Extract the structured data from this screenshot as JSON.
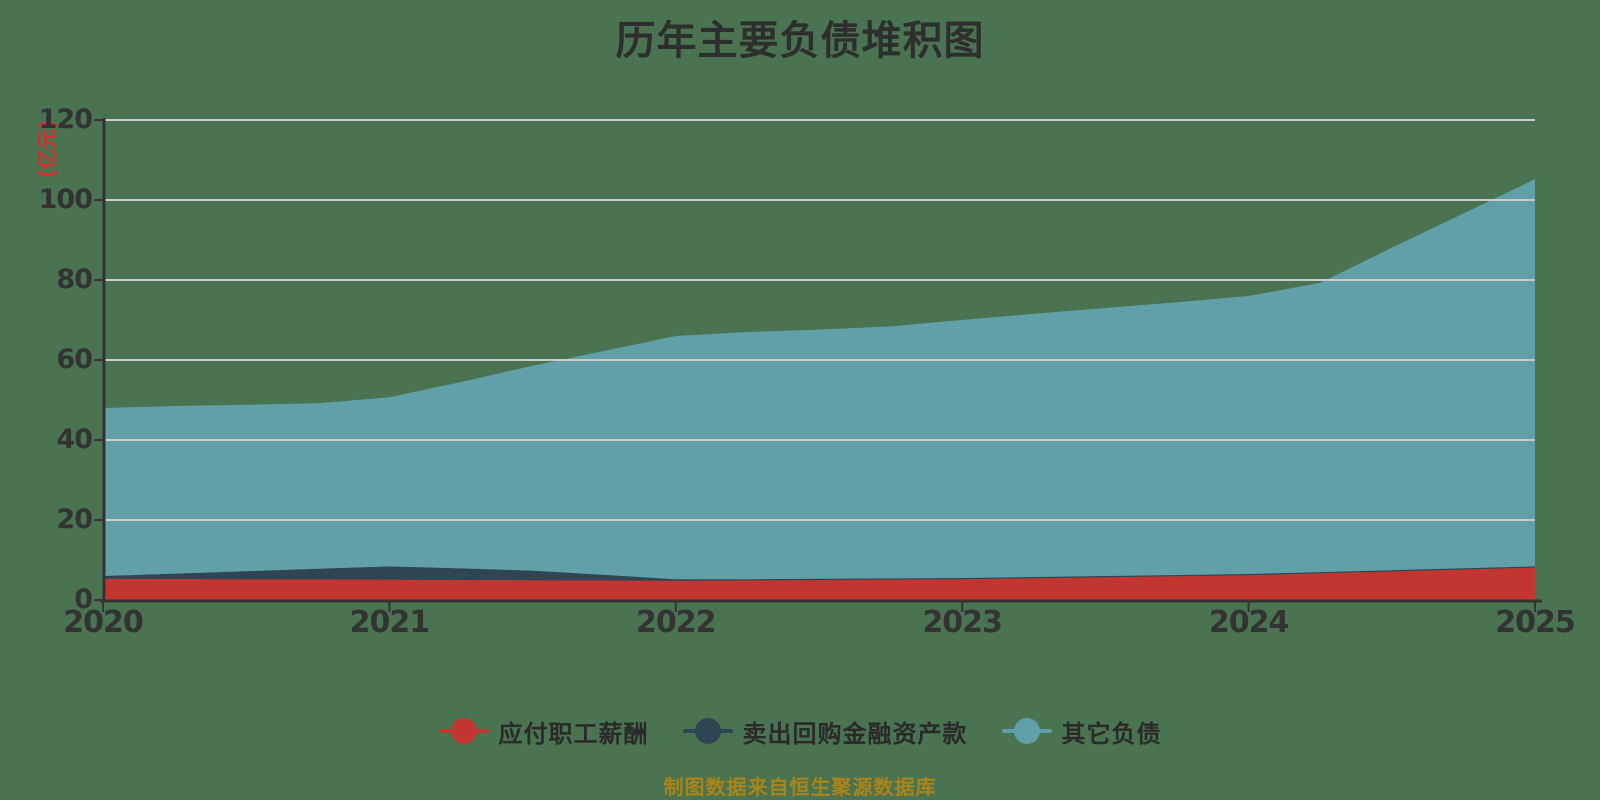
{
  "chart_data": {
    "type": "area",
    "stacked": true,
    "title": "历年主要负债堆积图",
    "y_unit_label": "(亿元)",
    "x": [
      2020,
      2020.25,
      2020.5,
      2020.75,
      2021,
      2021.25,
      2021.5,
      2021.75,
      2022,
      2022.25,
      2022.5,
      2022.75,
      2023,
      2023.25,
      2023.5,
      2023.75,
      2024,
      2024.25,
      2024.5,
      2024.75,
      2025
    ],
    "x_tick_labels": [
      "2020",
      "2021",
      "2022",
      "2023",
      "2024",
      "2025"
    ],
    "x_tick_values": [
      2020,
      2021,
      2022,
      2023,
      2024,
      2025
    ],
    "y_ticks": [
      0,
      20,
      40,
      60,
      80,
      100,
      120
    ],
    "ylim": [
      0,
      120
    ],
    "xlim": [
      2020,
      2025
    ],
    "grid": true,
    "legend_position": "bottom",
    "series": [
      {
        "name": "应付职工薪酬",
        "color": "#c23531",
        "values": [
          5.3,
          5.25,
          5.2,
          5.15,
          5.1,
          5.0,
          4.95,
          4.88,
          4.8,
          4.9,
          5.0,
          5.1,
          5.2,
          5.45,
          5.7,
          5.95,
          6.2,
          6.68,
          7.15,
          7.63,
          8.1
        ]
      },
      {
        "name": "卖出回购金融资产款",
        "color": "#2f4554",
        "values": [
          0.7,
          1.35,
          2.0,
          2.65,
          3.3,
          2.9,
          2.4,
          1.4,
          0.4,
          0.3,
          0.3,
          0.3,
          0.3,
          0.3,
          0.3,
          0.3,
          0.3,
          0.3,
          0.3,
          0.3,
          0.3
        ]
      },
      {
        "name": "其它负债",
        "color": "#61a0a8",
        "values": [
          42.0,
          41.9,
          41.6,
          41.4,
          42.3,
          46.6,
          51.2,
          56.0,
          60.8,
          61.8,
          62.3,
          63.0,
          64.5,
          65.8,
          67.0,
          68.2,
          69.5,
          72.3,
          80.6,
          88.7,
          96.8
        ]
      }
    ],
    "stacked_totals": [
      48.0,
      48.5,
      48.8,
      49.2,
      50.7,
      54.5,
      58.55,
      62.28,
      66.0,
      67.0,
      67.6,
      68.4,
      70.0,
      71.55,
      73.0,
      74.45,
      76.0,
      79.28,
      88.05,
      96.63,
      105.2
    ]
  },
  "footer": {
    "source_note": "制图数据来自恒生聚源数据库"
  },
  "colors": {
    "background": "#4a7351",
    "grid": "#cbcbcb",
    "axis": "#333333",
    "tick_text": "#333333",
    "title_text": "#2e2e2e",
    "unit_label_text": "#d62c2c",
    "legend_text": "#2a2a2a",
    "footer_text": "#ab8418"
  }
}
